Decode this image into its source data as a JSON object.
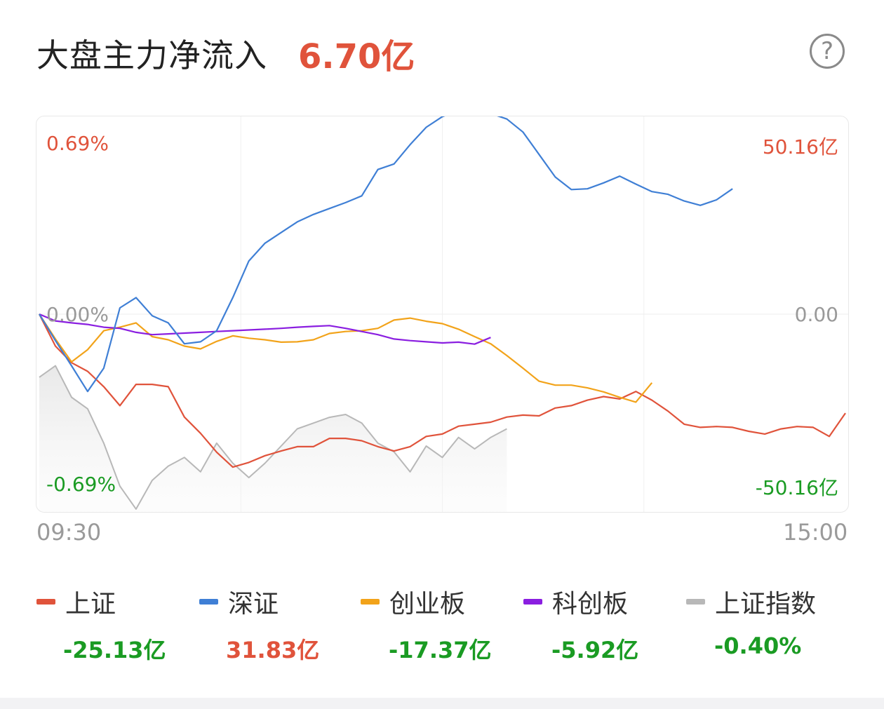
{
  "header": {
    "title": "大盘主力净流入",
    "total": "6.70亿"
  },
  "help_label": "?",
  "colors": {
    "up": "#e0533b",
    "down": "#1a9b23",
    "neutral": "#999999",
    "shangzheng": "#e0533b",
    "shenzheng": "#3f7fd5",
    "chuangye": "#f2a31a",
    "kechuang": "#8a1ee0",
    "index": "#b8b8b8"
  },
  "chart": {
    "left_top": "0.69%",
    "left_zero": "0.00%",
    "left_bottom": "-0.69%",
    "right_top": "50.16亿",
    "right_zero": "0.00",
    "right_bottom": "-50.16亿"
  },
  "time_axis": {
    "start": "09:30",
    "end": "15:00"
  },
  "legend": [
    {
      "name": "上证",
      "value": "-25.13亿",
      "color": "#e0533b",
      "value_color": "#1a9b23"
    },
    {
      "name": "深证",
      "value": "31.83亿",
      "color": "#3f7fd5",
      "value_color": "#e0533b"
    },
    {
      "name": "创业板",
      "value": "-17.37亿",
      "color": "#f2a31a",
      "value_color": "#1a9b23"
    },
    {
      "name": "科创板",
      "value": "-5.92亿",
      "color": "#8a1ee0",
      "value_color": "#1a9b23"
    },
    {
      "name": "上证指数",
      "value": "-0.40%",
      "color": "#b8b8b8",
      "value_color": "#1a9b23"
    }
  ],
  "chart_data": {
    "type": "line",
    "x_range": [
      "09:30",
      "15:00"
    ],
    "y_left_unit": "%",
    "y_left_range": [
      -0.69,
      0.69
    ],
    "y_right_unit": "亿",
    "y_right_range": [
      -50.16,
      50.16
    ],
    "x_fraction": [
      0,
      0.02,
      0.04,
      0.06,
      0.08,
      0.1,
      0.12,
      0.14,
      0.16,
      0.18,
      0.2,
      0.22,
      0.24,
      0.26,
      0.28,
      0.3,
      0.32,
      0.34,
      0.36,
      0.38,
      0.4,
      0.42,
      0.44,
      0.46,
      0.48,
      0.5,
      0.52,
      0.54,
      0.56,
      0.58,
      0.6,
      0.62,
      0.64,
      0.66,
      0.68,
      0.7,
      0.72,
      0.74,
      0.76,
      0.78,
      0.8,
      0.82,
      0.84,
      0.86,
      0.88,
      0.9,
      0.92,
      0.94,
      0.96,
      0.98,
      1.0
    ],
    "series": [
      {
        "name": "上证",
        "axis": "right",
        "color": "#e0533b",
        "values": [
          0,
          -8.1,
          -12.3,
          -14.5,
          -18.4,
          -23.2,
          -17.8,
          -17.8,
          -18.4,
          -26.1,
          -30.2,
          -35.0,
          -38.8,
          -37.6,
          -35.9,
          -34.7,
          -33.6,
          -33.6,
          -31.5,
          -31.5,
          -32.1,
          -33.6,
          -34.7,
          -33.6,
          -31.0,
          -30.4,
          -28.4,
          -27.9,
          -27.4,
          -26.1,
          -25.6,
          -25.8,
          -23.8,
          -23.2,
          -21.8,
          -20.9,
          -21.5,
          -19.6,
          -21.8,
          -24.6,
          -27.9,
          -28.7,
          -28.5,
          -28.7,
          -29.7,
          -30.4,
          -29.1,
          -28.5,
          -28.7,
          -31.0,
          -25.1
        ]
      },
      {
        "name": "深证",
        "axis": "right",
        "color": "#3f7fd5",
        "values": [
          0,
          -6.7,
          -13.1,
          -19.6,
          -13.7,
          1.6,
          4.2,
          -0.4,
          -2.2,
          -7.5,
          -7.0,
          -4.2,
          4.2,
          13.5,
          18.0,
          20.7,
          23.4,
          25.3,
          26.8,
          28.3,
          30.0,
          36.7,
          38.1,
          43.0,
          47.4,
          50.1,
          51.6,
          51.8,
          50.9,
          49.5,
          46.2,
          40.5,
          34.8,
          31.6,
          31.8,
          33.3,
          35.0,
          33.0,
          31.1,
          30.4,
          28.7,
          27.6,
          29.0,
          31.8
        ]
      },
      {
        "name": "创业板",
        "axis": "right",
        "color": "#f2a31a",
        "values": [
          0,
          -6.3,
          -12.1,
          -9.0,
          -4.2,
          -3.3,
          -2.2,
          -5.7,
          -6.5,
          -8.1,
          -8.8,
          -6.9,
          -5.5,
          -6.1,
          -6.5,
          -7.1,
          -7.0,
          -6.5,
          -4.9,
          -4.4,
          -4.2,
          -3.6,
          -1.5,
          -1.0,
          -1.8,
          -2.4,
          -3.8,
          -5.7,
          -7.5,
          -10.5,
          -13.7,
          -17.0,
          -18.0,
          -18.0,
          -18.7,
          -19.7,
          -21.1,
          -22.3,
          -17.4
        ]
      },
      {
        "name": "科创板",
        "axis": "right",
        "color": "#8a1ee0",
        "values": [
          0,
          -1.7,
          -2.2,
          -2.6,
          -3.3,
          -3.6,
          -4.6,
          -5.2,
          -5.0,
          -4.8,
          -4.6,
          -4.4,
          -4.2,
          -4.0,
          -3.8,
          -3.6,
          -3.3,
          -3.1,
          -2.9,
          -3.6,
          -4.4,
          -5.2,
          -6.3,
          -6.7,
          -7.0,
          -7.3,
          -7.1,
          -7.6,
          -5.9
        ]
      },
      {
        "name": "上证指数",
        "axis": "left",
        "color": "#b8b8b8",
        "area": true,
        "values": [
          -0.22,
          -0.18,
          -0.29,
          -0.33,
          -0.45,
          -0.6,
          -0.68,
          -0.58,
          -0.53,
          -0.5,
          -0.55,
          -0.45,
          -0.52,
          -0.57,
          -0.52,
          -0.46,
          -0.4,
          -0.38,
          -0.36,
          -0.35,
          -0.38,
          -0.45,
          -0.48,
          -0.55,
          -0.46,
          -0.5,
          -0.43,
          -0.47,
          -0.43,
          -0.4
        ]
      }
    ]
  }
}
